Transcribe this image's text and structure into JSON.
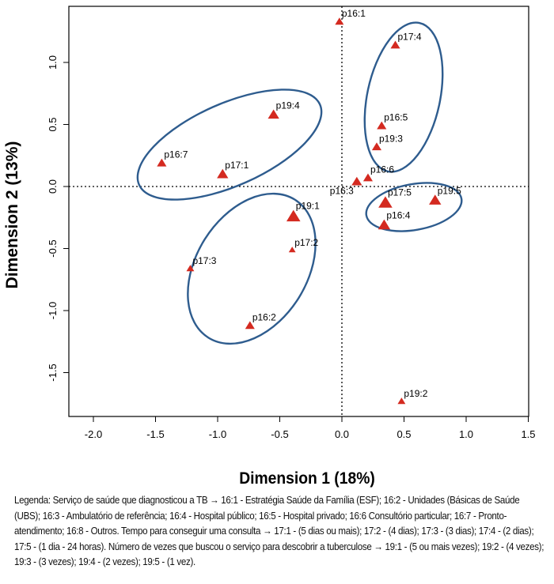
{
  "chart_data": {
    "type": "scatter",
    "title": "",
    "xlabel": "Dimension 1 (18%)",
    "ylabel": "Dimension 2 (13%)",
    "xlim": [
      -2.2,
      1.5
    ],
    "ylim": [
      -1.85,
      1.45
    ],
    "xticks": [
      "-2.0",
      "-1.5",
      "-1.0",
      "-0.5",
      "0.0",
      "0.5",
      "1.0",
      "1.5"
    ],
    "xtick_values": [
      -2.0,
      -1.5,
      -1.0,
      -0.5,
      0.0,
      0.5,
      1.0,
      1.5
    ],
    "yticks": [
      "-1.5",
      "-1.0",
      "-0.5",
      "0.0",
      "0.5",
      "1.0"
    ],
    "ytick_values": [
      -1.5,
      -1.0,
      -0.5,
      0.0,
      0.5,
      1.0
    ],
    "marker_color": "#d42a20",
    "ellipse_color": "#2e5c8e",
    "points": [
      {
        "label": "p16:1",
        "x": -0.02,
        "y": 1.33,
        "size": 1.0
      },
      {
        "label": "p17:4",
        "x": 0.43,
        "y": 1.14,
        "size": 1.1
      },
      {
        "label": "p19:4",
        "x": -0.55,
        "y": 0.58,
        "size": 1.3
      },
      {
        "label": "p16:5",
        "x": 0.32,
        "y": 0.49,
        "size": 1.1
      },
      {
        "label": "p19:3",
        "x": 0.28,
        "y": 0.32,
        "size": 1.1
      },
      {
        "label": "p16:7",
        "x": -1.45,
        "y": 0.19,
        "size": 1.1
      },
      {
        "label": "p17:1",
        "x": -0.96,
        "y": 0.1,
        "size": 1.3
      },
      {
        "label": "p16:3",
        "x": 0.12,
        "y": 0.04,
        "size": 1.2
      },
      {
        "label": "p16:6",
        "x": 0.21,
        "y": 0.07,
        "size": 1.1
      },
      {
        "label": "p17:5",
        "x": 0.35,
        "y": -0.13,
        "size": 1.6
      },
      {
        "label": "p19:5",
        "x": 0.75,
        "y": -0.11,
        "size": 1.4
      },
      {
        "label": "p19:1",
        "x": -0.39,
        "y": -0.24,
        "size": 1.6
      },
      {
        "label": "p16:4",
        "x": 0.34,
        "y": -0.31,
        "size": 1.4
      },
      {
        "label": "p17:2",
        "x": -0.4,
        "y": -0.51,
        "size": 0.8
      },
      {
        "label": "p17:3",
        "x": -1.22,
        "y": -0.66,
        "size": 0.9
      },
      {
        "label": "p16:2",
        "x": -0.74,
        "y": -1.12,
        "size": 1.1
      },
      {
        "label": "p19:2",
        "x": 0.48,
        "y": -1.73,
        "size": 0.9
      }
    ],
    "reference_lines": {
      "x": 0,
      "y": 0
    }
  },
  "legend_text": "Legenda: Serviço de saúde que diagnosticou a TB → 16:1 - Estratégia Saúde da Família (ESF); 16:2 - Unidades (Básicas de Saúde (UBS); 16:3 - Ambulatório de referência; 16:4 - Hospital público; 16:5 - Hospital privado; 16:6 Consultório particular; 16:7 - Pronto-atendimento; 16:8 - Outros. Tempo para conseguir uma consulta → 17:1 - (5 dias ou mais); 17:2 - (4 dias); 17:3 - (3 dias); 17:4 - (2 dias); 17:5 - (1 dia - 24 horas). Número de vezes que buscou o serviço para descobrir a tuberculose → 19:1 - (5 ou mais vezes); 19:2 - (4 vezes); 19:3 - (3 vezes); 19:4 - (2 vezes); 19:5 - (1 vez)."
}
